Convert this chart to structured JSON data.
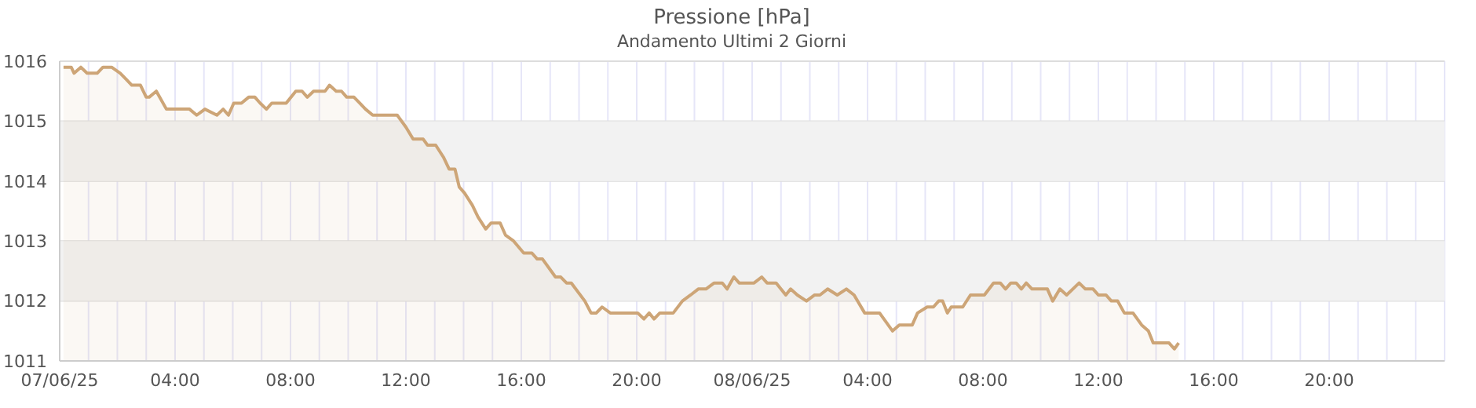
{
  "chart_data": {
    "type": "area",
    "title": "Pressione [hPa]",
    "subtitle": "Andamento Ultimi 2 Giorni",
    "x": [
      "--06-07T00:08",
      "--06-07T00:24",
      "--06-07T00:30",
      "--06-07T00:44",
      "--06-07T00:57",
      "--06-07T01:18",
      "--06-07T01:30",
      "--06-07T01:48",
      "--06-07T02:06",
      "--06-07T02:18",
      "--06-07T02:30",
      "--06-07T02:48",
      "--06-07T03:00",
      "--06-07T03:06",
      "--06-07T03:21",
      "--06-07T03:42",
      "--06-07T04:30",
      "--06-07T04:45",
      "--06-07T05:02",
      "--06-07T05:27",
      "--06-07T05:40",
      "--06-07T05:51",
      "--06-07T06:02",
      "--06-07T06:18",
      "--06-07T06:33",
      "--06-07T06:46",
      "--06-07T06:57",
      "--06-07T07:10",
      "--06-07T07:21",
      "--06-07T07:51",
      "--06-07T08:11",
      "--06-07T08:24",
      "--06-07T08:35",
      "--06-07T08:48",
      "--06-07T09:12",
      "--06-07T09:21",
      "--06-07T09:35",
      "--06-07T09:46",
      "--06-07T09:57",
      "--06-07T10:12",
      "--06-07T10:24",
      "--06-07T10:36",
      "--06-07T10:51",
      "--06-07T11:42",
      "--06-07T12:00",
      "--06-07T12:15",
      "--06-07T12:36",
      "--06-07T12:45",
      "--06-07T13:02",
      "--06-07T13:18",
      "--06-07T13:30",
      "--06-07T13:42",
      "--06-07T13:51",
      "--06-07T14:02",
      "--06-07T14:18",
      "--06-07T14:30",
      "--06-07T14:46",
      "--06-07T14:57",
      "--06-07T15:16",
      "--06-07T15:27",
      "--06-07T15:44",
      "--06-07T16:05",
      "--06-07T16:22",
      "--06-07T16:33",
      "--06-07T16:44",
      "--06-07T17:11",
      "--06-07T17:22",
      "--06-07T17:34",
      "--06-07T17:44",
      "--06-07T18:12",
      "--06-07T18:25",
      "--06-07T18:36",
      "--06-07T18:48",
      "--06-07T19:05",
      "--06-07T20:02",
      "--06-07T20:15",
      "--06-07T20:26",
      "--06-07T20:36",
      "--06-07T20:48",
      "--06-07T21:16",
      "--06-07T21:35",
      "--06-07T21:52",
      "--06-07T22:08",
      "--06-07T22:24",
      "--06-07T22:41",
      "--06-07T22:58",
      "--06-07T23:08",
      "--06-07T23:22",
      "--06-07T23:33",
      "--06-08T00:04",
      "--06-08T00:20",
      "--06-08T00:31",
      "--06-08T00:50",
      "--06-08T01:10",
      "--06-08T01:20",
      "--06-08T01:34",
      "--06-08T01:53",
      "--06-08T02:10",
      "--06-08T02:21",
      "--06-08T02:37",
      "--06-08T02:57",
      "--06-08T03:16",
      "--06-08T03:32",
      "--06-08T03:54",
      "--06-08T04:25",
      "--06-08T04:52",
      "--06-08T05:06",
      "--06-08T05:33",
      "--06-08T05:44",
      "--06-08T06:04",
      "--06-08T06:17",
      "--06-08T06:28",
      "--06-08T06:36",
      "--06-08T06:46",
      "--06-08T06:54",
      "--06-08T07:18",
      "--06-08T07:34",
      "--06-08T07:46",
      "--06-08T08:03",
      "--06-08T08:22",
      "--06-08T08:36",
      "--06-08T08:47",
      "--06-08T08:58",
      "--06-08T09:09",
      "--06-08T09:20",
      "--06-08T09:30",
      "--06-08T09:42",
      "--06-08T10:14",
      "--06-08T10:25",
      "--06-08T10:40",
      "--06-08T10:54",
      "--06-08T11:20",
      "--06-08T11:33",
      "--06-08T11:49",
      "--06-08T12:00",
      "--06-08T12:16",
      "--06-08T12:27",
      "--06-08T12:40",
      "--06-08T12:54",
      "--06-08T13:12",
      "--06-08T13:30",
      "--06-08T13:44",
      "--06-08T13:54",
      "--06-08T14:27",
      "--06-08T14:38",
      "--06-08T14:47"
    ],
    "series": [
      {
        "color": "#cda577",
        "values": [
          1015.9,
          1015.9,
          1015.8,
          1015.9,
          1015.8,
          1015.8,
          1015.9,
          1015.9,
          1015.8,
          1015.7,
          1015.6,
          1015.6,
          1015.4,
          1015.4,
          1015.5,
          1015.2,
          1015.2,
          1015.1,
          1015.2,
          1015.1,
          1015.2,
          1015.1,
          1015.3,
          1015.3,
          1015.4,
          1015.4,
          1015.3,
          1015.2,
          1015.3,
          1015.3,
          1015.5,
          1015.5,
          1015.4,
          1015.5,
          1015.5,
          1015.6,
          1015.5,
          1015.5,
          1015.4,
          1015.4,
          1015.3,
          1015.2,
          1015.1,
          1015.1,
          1014.9,
          1014.7,
          1014.7,
          1014.6,
          1014.6,
          1014.4,
          1014.2,
          1014.2,
          1013.9,
          1013.8,
          1013.6,
          1013.4,
          1013.2,
          1013.3,
          1013.3,
          1013.1,
          1013.0,
          1012.8,
          1012.8,
          1012.7,
          1012.7,
          1012.4,
          1012.4,
          1012.3,
          1012.3,
          1012.0,
          1011.8,
          1011.8,
          1011.9,
          1011.8,
          1011.8,
          1011.7,
          1011.8,
          1011.7,
          1011.8,
          1011.8,
          1012.0,
          1012.1,
          1012.2,
          1012.2,
          1012.3,
          1012.3,
          1012.2,
          1012.4,
          1012.3,
          1012.3,
          1012.4,
          1012.3,
          1012.3,
          1012.1,
          1012.2,
          1012.1,
          1012.0,
          1012.1,
          1012.1,
          1012.2,
          1012.1,
          1012.2,
          1012.1,
          1011.8,
          1011.8,
          1011.5,
          1011.6,
          1011.6,
          1011.8,
          1011.9,
          1011.9,
          1012.0,
          1012.0,
          1011.8,
          1011.9,
          1011.9,
          1012.1,
          1012.1,
          1012.1,
          1012.3,
          1012.3,
          1012.2,
          1012.3,
          1012.3,
          1012.2,
          1012.3,
          1012.2,
          1012.2,
          1012.0,
          1012.2,
          1012.1,
          1012.3,
          1012.2,
          1012.2,
          1012.1,
          1012.1,
          1012.0,
          1012.0,
          1011.8,
          1011.8,
          1011.6,
          1011.5,
          1011.3,
          1011.3,
          1011.2,
          1011.3
        ]
      }
    ],
    "xlim": [
      "--06-07T00:00",
      "--06-09T00:00"
    ],
    "xticks": [
      {
        "value": "--06-07T00:00",
        "label": "07/06/25"
      },
      {
        "value": "--06-07T01:00",
        "label": null
      },
      {
        "value": "--06-07T02:00",
        "label": null
      },
      {
        "value": "--06-07T03:00",
        "label": null
      },
      {
        "value": "--06-07T04:00",
        "label": "04:00"
      },
      {
        "value": "--06-07T05:00",
        "label": null
      },
      {
        "value": "--06-07T06:00",
        "label": null
      },
      {
        "value": "--06-07T07:00",
        "label": null
      },
      {
        "value": "--06-07T08:00",
        "label": "08:00"
      },
      {
        "value": "--06-07T09:00",
        "label": null
      },
      {
        "value": "--06-07T10:00",
        "label": null
      },
      {
        "value": "--06-07T11:00",
        "label": null
      },
      {
        "value": "--06-07T12:00",
        "label": "12:00"
      },
      {
        "value": "--06-07T13:00",
        "label": null
      },
      {
        "value": "--06-07T14:00",
        "label": null
      },
      {
        "value": "--06-07T15:00",
        "label": null
      },
      {
        "value": "--06-07T16:00",
        "label": "16:00"
      },
      {
        "value": "--06-07T17:00",
        "label": null
      },
      {
        "value": "--06-07T18:00",
        "label": null
      },
      {
        "value": "--06-07T19:00",
        "label": null
      },
      {
        "value": "--06-07T20:00",
        "label": "20:00"
      },
      {
        "value": "--06-07T21:00",
        "label": null
      },
      {
        "value": "--06-07T22:00",
        "label": null
      },
      {
        "value": "--06-07T23:00",
        "label": null
      },
      {
        "value": "--06-08T00:00",
        "label": "08/06/25"
      },
      {
        "value": "--06-08T01:00",
        "label": null
      },
      {
        "value": "--06-08T02:00",
        "label": null
      },
      {
        "value": "--06-08T03:00",
        "label": null
      },
      {
        "value": "--06-08T04:00",
        "label": "04:00"
      },
      {
        "value": "--06-08T05:00",
        "label": null
      },
      {
        "value": "--06-08T06:00",
        "label": null
      },
      {
        "value": "--06-08T07:00",
        "label": null
      },
      {
        "value": "--06-08T08:00",
        "label": "08:00"
      },
      {
        "value": "--06-08T09:00",
        "label": null
      },
      {
        "value": "--06-08T10:00",
        "label": null
      },
      {
        "value": "--06-08T11:00",
        "label": null
      },
      {
        "value": "--06-08T12:00",
        "label": "12:00"
      },
      {
        "value": "--06-08T13:00",
        "label": null
      },
      {
        "value": "--06-08T14:00",
        "label": null
      },
      {
        "value": "--06-08T15:00",
        "label": null
      },
      {
        "value": "--06-08T16:00",
        "label": "16:00"
      },
      {
        "value": "--06-08T17:00",
        "label": null
      },
      {
        "value": "--06-08T18:00",
        "label": null
      },
      {
        "value": "--06-08T19:00",
        "label": null
      },
      {
        "value": "--06-08T20:00",
        "label": "20:00"
      },
      {
        "value": "--06-08T21:00",
        "label": null
      },
      {
        "value": "--06-08T22:00",
        "label": null
      },
      {
        "value": "--06-08T23:00",
        "label": null
      },
      {
        "value": "--06-09T00:00",
        "label": null
      }
    ],
    "ylim": [
      1011,
      1016
    ],
    "yticks": [
      1011,
      1012,
      1013,
      1014,
      1015,
      1016
    ],
    "grid": true,
    "bands": [
      {
        "axis": "y",
        "from": 1012,
        "to": 1013,
        "color": "#f2f2f2"
      },
      {
        "axis": "y",
        "from": 1014,
        "to": 1015,
        "color": "#f2f2f2"
      }
    ]
  }
}
